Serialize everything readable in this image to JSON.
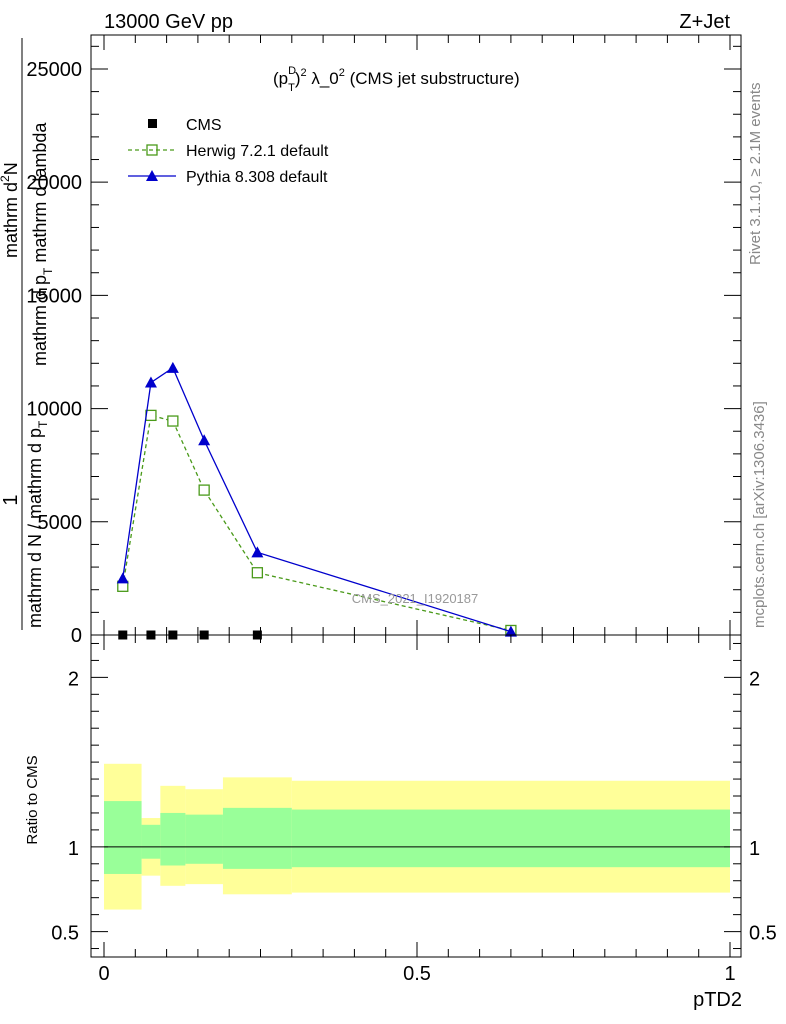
{
  "header": {
    "energy_label": "13000 GeV pp",
    "process_label": "Z+Jet"
  },
  "side_labels": {
    "rivet": "Rivet 3.1.10, ≥ 2.1M events",
    "mcplots": "mcplots.cern.ch [arXiv:1306.3436]"
  },
  "chart_data": {
    "type": "line",
    "title": {
      "p": "(p",
      "sup_d": "D",
      "sub_t": "T",
      "sup_2": "2",
      "mid": " λ_0",
      "sup_2b": "2",
      "rest": " (CMS jet substructure)"
    },
    "ylabel": {
      "one": "1",
      "den_main": "mathrm d N / mathrm d p",
      "den_sub": "T",
      "num_main": "mathrm d",
      "num_sup": "2",
      "num_N": "N",
      "num2_main": "mathrm d p",
      "num2_sub": "T",
      "num2_rest": " mathrm d lambda"
    },
    "xlabel": "pTD2",
    "watermark": "CMS_2021_I1920187",
    "xlim": [
      0,
      1
    ],
    "ylim": [
      0,
      26500
    ],
    "yticks": [
      0,
      5000,
      10000,
      15000,
      20000,
      25000
    ],
    "ytick_labels": [
      "0",
      "5000",
      "10000",
      "15000",
      "20000",
      "25000"
    ],
    "xticks": [
      0,
      0.5,
      1
    ],
    "xtick_labels": [
      "0",
      "0.5",
      "1"
    ],
    "legend": [
      {
        "key": "cms",
        "label": "CMS"
      },
      {
        "key": "herwig",
        "label": "Herwig 7.2.1 default"
      },
      {
        "key": "pythia",
        "label": "Pythia 8.308 default"
      }
    ],
    "series": [
      {
        "key": "cms",
        "name": "CMS",
        "color": "#000000",
        "x": [
          0.03,
          0.075,
          0.11,
          0.16,
          0.245
        ],
        "y": [
          0,
          0,
          0,
          0,
          0
        ]
      },
      {
        "key": "herwig",
        "name": "Herwig 7.2.1 default",
        "color": "#4a9a1a",
        "x": [
          0.03,
          0.075,
          0.11,
          0.16,
          0.245,
          0.65
        ],
        "y": [
          2150,
          9700,
          9450,
          6400,
          2750,
          200
        ]
      },
      {
        "key": "pythia",
        "name": "Pythia 8.308 default",
        "color": "#0000cc",
        "x": [
          0.03,
          0.075,
          0.11,
          0.16,
          0.245,
          0.65
        ],
        "y": [
          2500,
          11150,
          11800,
          8600,
          3650,
          150
        ]
      }
    ],
    "ratio": {
      "ylabel": "Ratio to CMS",
      "ylim": [
        0.35,
        2.25
      ],
      "yticks": [
        0.5,
        1,
        2
      ],
      "ytick_labels": [
        "0.5",
        "1",
        "2"
      ],
      "bands": [
        {
          "x0": 0.0,
          "x1": 0.06,
          "yellow": [
            0.63,
            1.49
          ],
          "green": [
            0.84,
            1.27
          ]
        },
        {
          "x0": 0.06,
          "x1": 0.09,
          "yellow": [
            0.83,
            1.17
          ],
          "green": [
            0.93,
            1.13
          ]
        },
        {
          "x0": 0.09,
          "x1": 0.13,
          "yellow": [
            0.77,
            1.36
          ],
          "green": [
            0.89,
            1.2
          ]
        },
        {
          "x0": 0.13,
          "x1": 0.19,
          "yellow": [
            0.78,
            1.34
          ],
          "green": [
            0.9,
            1.19
          ]
        },
        {
          "x0": 0.19,
          "x1": 0.3,
          "yellow": [
            0.72,
            1.41
          ],
          "green": [
            0.87,
            1.23
          ]
        },
        {
          "x0": 0.3,
          "x1": 1.0,
          "yellow": [
            0.73,
            1.39
          ],
          "green": [
            0.88,
            1.22
          ]
        }
      ],
      "colors": {
        "yellow": "#ffff99",
        "green": "#99ff99"
      }
    }
  }
}
